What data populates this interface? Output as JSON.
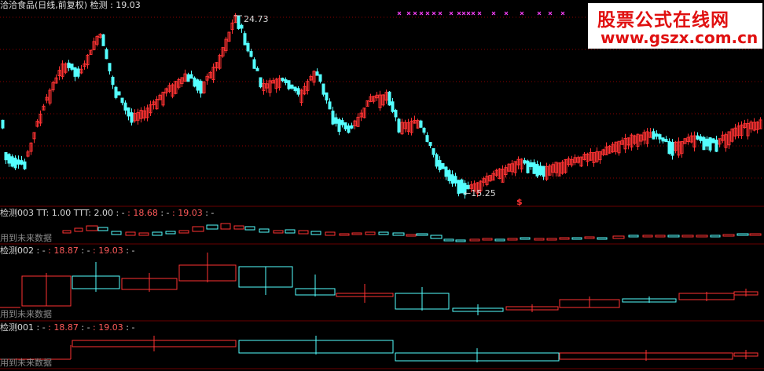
{
  "title": "洽洽食品(日线,前复权) 检测 : 19.03",
  "annotations": {
    "high": "24.73",
    "low": "15.25",
    "dollar": "$"
  },
  "panes": [
    {
      "name": "检测003",
      "parts": [
        " TT: 1.00  TTT: 2.00 : - ",
        ": 18.68",
        " : - ",
        ": 19.03",
        " : -"
      ]
    },
    {
      "name": "检测002",
      "parts": [
        " : - ",
        ": 18.87",
        " : - ",
        ": 19.03",
        " : -"
      ]
    },
    {
      "name": "检测001",
      "parts": [
        " : - ",
        ": 18.87",
        " : - ",
        ": 19.03",
        " : -"
      ]
    }
  ],
  "future_note": "用到未来数据",
  "watermark": {
    "title": "股票公式在线网",
    "url": "www.gszx.com.cn"
  },
  "colors": {
    "up": "#ff3232",
    "down": "#54ffff",
    "bg": "#000000",
    "signal": "#ff40ff",
    "grid": "#8b0000"
  },
  "chart_data": {
    "type": "candlestick",
    "max_price": 24.73,
    "min_price": 15.25,
    "last_price": 19.03
  }
}
